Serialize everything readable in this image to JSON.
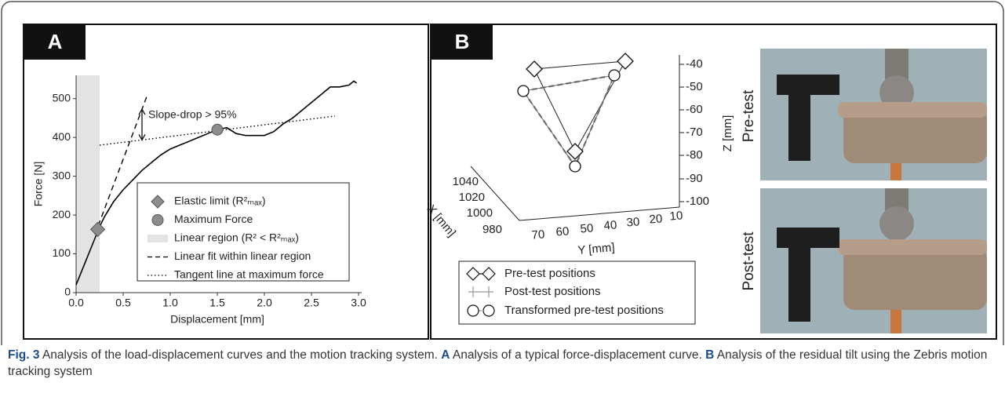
{
  "chart_data": {
    "type": "line",
    "panel_label": "A",
    "xlabel": "Displacement [mm]",
    "ylabel": "Force [N]",
    "xlim": [
      0,
      3
    ],
    "ylim": [
      0,
      560
    ],
    "xticks": [
      {
        "value": 0,
        "label": "0.0"
      },
      {
        "value": 0.5,
        "label": "0.5"
      },
      {
        "value": 1,
        "label": "1.0"
      },
      {
        "value": 1.5,
        "label": "1.5"
      },
      {
        "value": 2,
        "label": "2.0"
      },
      {
        "value": 2.5,
        "label": "2.5"
      },
      {
        "value": 3,
        "label": "3.0"
      }
    ],
    "yticks": [
      0,
      100,
      200,
      300,
      400,
      500
    ],
    "color": "#000000",
    "x": [
      0,
      0.1,
      0.2,
      0.25,
      0.3,
      0.4,
      0.5,
      0.6,
      0.7,
      0.8,
      0.9,
      1.0,
      1.1,
      1.2,
      1.3,
      1.4,
      1.5,
      1.6,
      1.7,
      1.8,
      1.9,
      2.0,
      2.1,
      2.2,
      2.3,
      2.4,
      2.5,
      2.6,
      2.7,
      2.8,
      2.9,
      2.95,
      2.98
    ],
    "values": [
      20,
      80,
      140,
      170,
      195,
      235,
      265,
      290,
      315,
      335,
      355,
      370,
      380,
      390,
      400,
      410,
      420,
      425,
      410,
      405,
      405,
      405,
      415,
      435,
      450,
      470,
      490,
      510,
      530,
      530,
      535,
      545,
      540
    ],
    "series": [
      {
        "name": "Elastic limit (R²ₘₐₓ)",
        "style": "diamond",
        "color": "#8c8c8c",
        "x": [
          0.23
        ],
        "values": [
          163
        ]
      },
      {
        "name": "Maximum Force",
        "style": "circle",
        "color": "#8c8c8c",
        "x": [
          1.5
        ],
        "values": [
          420
        ]
      },
      {
        "name": "Linear region (R² < R²ₘₐₓ)",
        "style": "band",
        "color": "#e3e3e3",
        "x": [
          0,
          0.25
        ]
      },
      {
        "name": "Linear fit within linear region",
        "style": "dashed",
        "color": "#000000",
        "x": [
          0.2,
          0.75
        ],
        "values": [
          150,
          505
        ]
      },
      {
        "name": "Tangent line at maximum force",
        "style": "dotted",
        "color": "#000000",
        "x": [
          0.25,
          2.75
        ],
        "values": [
          380,
          455
        ]
      }
    ],
    "annotation": "Slope-drop > 95%"
  },
  "panel_b": {
    "label": "B",
    "z_label": "Z [mm]",
    "z_ticks": [
      -40,
      -50,
      -60,
      -70,
      -80,
      -90,
      -100
    ],
    "y_label": "Y [mm]",
    "y_ticks": [
      70,
      60,
      50,
      40,
      30,
      20,
      10
    ],
    "x_label": "X [mm]",
    "x_ticks": [
      1040,
      1020,
      1000,
      980
    ],
    "legend": [
      "Pre-test positions",
      "Post-test positions",
      "Transformed pre-test positions"
    ],
    "photo_labels": [
      "Pre-test",
      "Post-test"
    ]
  },
  "caption": {
    "figure": "Fig. 3",
    "text": "Analysis of the load-displacement curves and the motion tracking system.",
    "a_label": "A",
    "a_text": "Analysis of a typical force-displacement curve.",
    "b_label": "B",
    "b_text": "Analysis of the residual tilt using the Zebris motion tracking system"
  }
}
